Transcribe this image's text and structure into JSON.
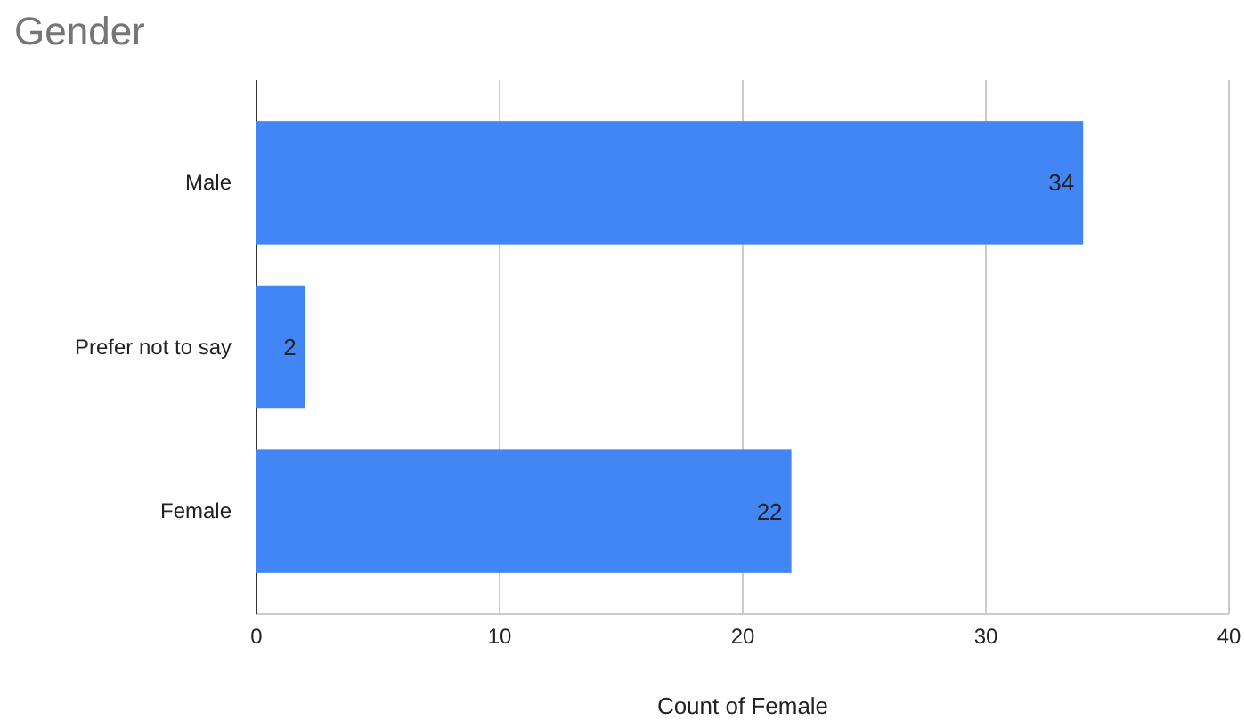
{
  "chart_data": {
    "type": "bar",
    "orientation": "horizontal",
    "title": "Gender",
    "xlabel": "Count of Female",
    "categories": [
      "Male",
      "Prefer not to say",
      "Female"
    ],
    "values": [
      34,
      2,
      22
    ],
    "color": "#4285f4",
    "xlim": [
      0,
      40
    ],
    "xticks": [
      0,
      10,
      20,
      30,
      40
    ],
    "grid": "x",
    "data_labels": true
  }
}
